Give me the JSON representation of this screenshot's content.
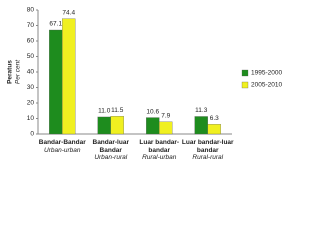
{
  "chart_data": {
    "type": "bar",
    "ylabel": "Peratus",
    "ylabel_en": "Per cent",
    "categories": [
      "Bandar-Bandar",
      "Bandar-luar Bandar",
      "Luar bandar-bandar",
      "Luar bandar-luar bandar"
    ],
    "categories_en": [
      "Urban-urban",
      "Urban-rural",
      "Rural-urban",
      "Rural-rural"
    ],
    "series": [
      {
        "name": "1995-2000",
        "color": "#1e8c1e",
        "values": [
          67.1,
          11.0,
          10.6,
          11.3
        ],
        "value_labels": [
          "67.1",
          "11.0",
          "10.6",
          "11.3"
        ]
      },
      {
        "name": "2005-2010",
        "color": "#f0f020",
        "values": [
          74.4,
          11.5,
          7.9,
          6.3
        ],
        "value_labels": [
          "74.4",
          "11.5",
          "7.9",
          "6.3"
        ]
      }
    ],
    "ylim": [
      0,
      80
    ],
    "yticks": [
      0,
      10,
      20,
      30,
      40,
      50,
      60,
      70,
      80
    ],
    "legend": "right"
  }
}
